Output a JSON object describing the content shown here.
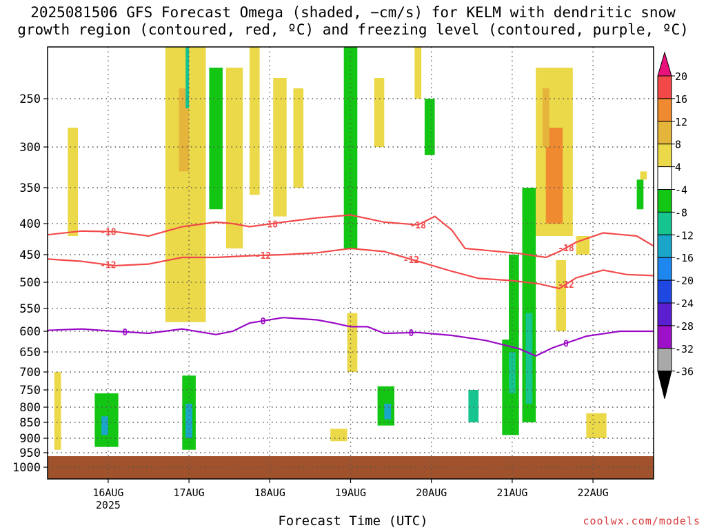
{
  "title_line1": "2025081506 GFS Forecast Omega (shaded, −cm/s) for KELM with dendritic snow",
  "title_line2": "growth region (contoured, red, ºC) and freezing level (contoured, purple, ºC)",
  "credit": "coolwx.com/models",
  "chart_data": {
    "type": "heatmap",
    "title": "2025081506 GFS Forecast Omega (shaded, −cm/s) for KELM with dendritic snow growth region (contoured, red, ºC) and freezing level (contoured, purple, ºC)",
    "xlabel": "Forecast Time (UTC)",
    "ylabel": "",
    "x_ticks": [
      {
        "label": "16AUG",
        "sub": "2025",
        "hour": 18
      },
      {
        "label": "17AUG",
        "sub": "",
        "hour": 42
      },
      {
        "label": "18AUG",
        "sub": "",
        "hour": 66
      },
      {
        "label": "19AUG",
        "sub": "",
        "hour": 90
      },
      {
        "label": "20AUG",
        "sub": "",
        "hour": 114
      },
      {
        "label": "21AUG",
        "sub": "",
        "hour": 138
      },
      {
        "label": "22AUG",
        "sub": "",
        "hour": 162
      }
    ],
    "xlim_hours": [
      0,
      180
    ],
    "y_axis": "pressure (hPa), reversed",
    "y_ticks": [
      250,
      300,
      350,
      400,
      450,
      500,
      550,
      600,
      650,
      700,
      750,
      800,
      850,
      900,
      950,
      1000
    ],
    "ylim": [
      1020,
      200
    ],
    "grid": true,
    "colorbar": {
      "labels": [
        "20",
        "16",
        "12",
        "8",
        "4",
        "-4",
        "-8",
        "-12",
        "-16",
        "-20",
        "-24",
        "-28",
        "-32",
        "-36"
      ],
      "colors": [
        "#e8127a",
        "#f34848",
        "#f08a30",
        "#e5b53b",
        "#ebd94a",
        "#ffffff",
        "#13c613",
        "#16c48f",
        "#1aa6c8",
        "#1e86ef",
        "#1f47e2",
        "#5b1ed0",
        "#9c11c8",
        "#a9a9a9",
        "#000000"
      ]
    },
    "omega_areas": [
      {
        "value": 4,
        "poly": [
          [
            2,
            700
          ],
          [
            4,
            700
          ],
          [
            4,
            940
          ],
          [
            2,
            940
          ]
        ]
      },
      {
        "value": 4,
        "poly": [
          [
            6,
            280
          ],
          [
            9,
            280
          ],
          [
            9,
            420
          ],
          [
            6,
            420
          ]
        ]
      },
      {
        "value": -8,
        "poly": [
          [
            15,
            800
          ],
          [
            20,
            800
          ],
          [
            20,
            920
          ],
          [
            15,
            920
          ]
        ]
      },
      {
        "value": -4,
        "poly": [
          [
            14,
            760
          ],
          [
            21,
            760
          ],
          [
            21,
            930
          ],
          [
            14,
            930
          ]
        ]
      },
      {
        "value": -12,
        "poly": [
          [
            16,
            830
          ],
          [
            18,
            830
          ],
          [
            18,
            890
          ],
          [
            16,
            890
          ]
        ]
      },
      {
        "value": 4,
        "poly": [
          [
            35,
            200
          ],
          [
            47,
            200
          ],
          [
            47,
            580
          ],
          [
            35,
            580
          ]
        ]
      },
      {
        "value": 8,
        "poly": [
          [
            39,
            240
          ],
          [
            42,
            240
          ],
          [
            42,
            330
          ],
          [
            39,
            330
          ]
        ]
      },
      {
        "value": -4,
        "poly": [
          [
            40,
            710
          ],
          [
            44,
            710
          ],
          [
            44,
            940
          ],
          [
            40,
            940
          ]
        ]
      },
      {
        "value": -12,
        "poly": [
          [
            41,
            790
          ],
          [
            43,
            790
          ],
          [
            43,
            900
          ],
          [
            41,
            900
          ]
        ]
      },
      {
        "value": -8,
        "poly": [
          [
            41,
            200
          ],
          [
            42,
            200
          ],
          [
            42,
            260
          ],
          [
            41,
            260
          ]
        ]
      },
      {
        "value": -4,
        "poly": [
          [
            48,
            220
          ],
          [
            52,
            220
          ],
          [
            52,
            380
          ],
          [
            48,
            380
          ]
        ]
      },
      {
        "value": 4,
        "poly": [
          [
            53,
            220
          ],
          [
            58,
            220
          ],
          [
            58,
            440
          ],
          [
            53,
            440
          ]
        ]
      },
      {
        "value": 4,
        "poly": [
          [
            60,
            200
          ],
          [
            63,
            200
          ],
          [
            63,
            360
          ],
          [
            60,
            360
          ]
        ]
      },
      {
        "value": 4,
        "poly": [
          [
            67,
            230
          ],
          [
            71,
            230
          ],
          [
            71,
            390
          ],
          [
            67,
            390
          ]
        ]
      },
      {
        "value": 4,
        "poly": [
          [
            73,
            240
          ],
          [
            76,
            240
          ],
          [
            76,
            350
          ],
          [
            73,
            350
          ]
        ]
      },
      {
        "value": -4,
        "poly": [
          [
            88,
            200
          ],
          [
            92,
            200
          ],
          [
            92,
            440
          ],
          [
            88,
            440
          ]
        ]
      },
      {
        "value": -4,
        "poly": [
          [
            98,
            740
          ],
          [
            103,
            740
          ],
          [
            103,
            860
          ],
          [
            98,
            860
          ]
        ]
      },
      {
        "value": -12,
        "poly": [
          [
            100,
            790
          ],
          [
            102,
            790
          ],
          [
            102,
            840
          ],
          [
            100,
            840
          ]
        ]
      },
      {
        "value": 4,
        "poly": [
          [
            89,
            560
          ],
          [
            92,
            560
          ],
          [
            92,
            700
          ],
          [
            89,
            700
          ]
        ]
      },
      {
        "value": 4,
        "poly": [
          [
            84,
            870
          ],
          [
            89,
            870
          ],
          [
            89,
            910
          ],
          [
            84,
            910
          ]
        ]
      },
      {
        "value": 4,
        "poly": [
          [
            97,
            230
          ],
          [
            100,
            230
          ],
          [
            100,
            300
          ],
          [
            97,
            300
          ]
        ]
      },
      {
        "value": 4,
        "poly": [
          [
            109,
            200
          ],
          [
            111,
            200
          ],
          [
            111,
            250
          ],
          [
            109,
            250
          ]
        ]
      },
      {
        "value": -4,
        "poly": [
          [
            112,
            250
          ],
          [
            115,
            250
          ],
          [
            115,
            310
          ],
          [
            112,
            310
          ]
        ]
      },
      {
        "value": -4,
        "poly": [
          [
            135,
            620
          ],
          [
            140,
            620
          ],
          [
            140,
            890
          ],
          [
            135,
            890
          ]
        ]
      },
      {
        "value": -4,
        "poly": [
          [
            137,
            450
          ],
          [
            140,
            450
          ],
          [
            140,
            620
          ],
          [
            137,
            620
          ]
        ]
      },
      {
        "value": -8,
        "poly": [
          [
            137,
            650
          ],
          [
            139,
            650
          ],
          [
            139,
            760
          ],
          [
            137,
            760
          ]
        ]
      },
      {
        "value": -4,
        "poly": [
          [
            141,
            350
          ],
          [
            145,
            350
          ],
          [
            145,
            850
          ],
          [
            141,
            850
          ]
        ]
      },
      {
        "value": -8,
        "poly": [
          [
            142,
            560
          ],
          [
            144,
            560
          ],
          [
            144,
            790
          ],
          [
            142,
            790
          ]
        ]
      },
      {
        "value": 4,
        "poly": [
          [
            145,
            220
          ],
          [
            156,
            220
          ],
          [
            156,
            420
          ],
          [
            145,
            420
          ]
        ]
      },
      {
        "value": 12,
        "poly": [
          [
            148,
            280
          ],
          [
            153,
            280
          ],
          [
            153,
            400
          ],
          [
            148,
            400
          ]
        ]
      },
      {
        "value": 8,
        "poly": [
          [
            147,
            240
          ],
          [
            149,
            240
          ],
          [
            149,
            300
          ],
          [
            147,
            300
          ]
        ]
      },
      {
        "value": 4,
        "poly": [
          [
            151,
            460
          ],
          [
            154,
            460
          ],
          [
            154,
            600
          ],
          [
            151,
            600
          ]
        ]
      },
      {
        "value": 4,
        "poly": [
          [
            157,
            420
          ],
          [
            161,
            420
          ],
          [
            161,
            450
          ],
          [
            157,
            450
          ]
        ]
      },
      {
        "value": 4,
        "poly": [
          [
            160,
            820
          ],
          [
            166,
            820
          ],
          [
            166,
            900
          ],
          [
            160,
            900
          ]
        ]
      },
      {
        "value": -8,
        "poly": [
          [
            125,
            750
          ],
          [
            128,
            750
          ],
          [
            128,
            850
          ],
          [
            125,
            850
          ]
        ]
      },
      {
        "value": -4,
        "poly": [
          [
            175,
            340
          ],
          [
            177,
            340
          ],
          [
            177,
            380
          ],
          [
            175,
            380
          ]
        ]
      },
      {
        "value": 4,
        "poly": [
          [
            176,
            330
          ],
          [
            178,
            330
          ],
          [
            178,
            340
          ],
          [
            176,
            340
          ]
        ]
      }
    ],
    "contours": [
      {
        "name": "-18",
        "color": "#f24a4a",
        "labels_at_hours": [
          18,
          66,
          110,
          154
        ],
        "points": [
          [
            0,
            418
          ],
          [
            10,
            412
          ],
          [
            20,
            413
          ],
          [
            30,
            420
          ],
          [
            40,
            405
          ],
          [
            50,
            398
          ],
          [
            55,
            400
          ],
          [
            60,
            405
          ],
          [
            70,
            398
          ],
          [
            80,
            392
          ],
          [
            90,
            388
          ],
          [
            100,
            398
          ],
          [
            110,
            402
          ],
          [
            115,
            390
          ],
          [
            120,
            410
          ],
          [
            124,
            440
          ],
          [
            140,
            448
          ],
          [
            148,
            455
          ],
          [
            152,
            445
          ],
          [
            157,
            430
          ],
          [
            165,
            415
          ],
          [
            175,
            420
          ],
          [
            180,
            436
          ]
        ]
      },
      {
        "name": "-12",
        "color": "#f24a4a",
        "labels_at_hours": [
          18,
          64,
          108,
          154
        ],
        "points": [
          [
            0,
            458
          ],
          [
            10,
            462
          ],
          [
            20,
            470
          ],
          [
            30,
            467
          ],
          [
            40,
            455
          ],
          [
            50,
            455
          ],
          [
            60,
            452
          ],
          [
            70,
            450
          ],
          [
            80,
            447
          ],
          [
            90,
            440
          ],
          [
            100,
            445
          ],
          [
            110,
            462
          ],
          [
            120,
            480
          ],
          [
            128,
            493
          ],
          [
            138,
            497
          ],
          [
            146,
            503
          ],
          [
            152,
            512
          ],
          [
            157,
            492
          ],
          [
            165,
            478
          ],
          [
            172,
            486
          ],
          [
            180,
            488
          ]
        ]
      },
      {
        "name": "0",
        "color": "#9a0ac6",
        "labels_at_hours": [
          23,
          64,
          108,
          154
        ],
        "points": [
          [
            0,
            598
          ],
          [
            10,
            595
          ],
          [
            20,
            600
          ],
          [
            30,
            605
          ],
          [
            40,
            595
          ],
          [
            50,
            608
          ],
          [
            55,
            600
          ],
          [
            60,
            582
          ],
          [
            70,
            570
          ],
          [
            80,
            575
          ],
          [
            85,
            582
          ],
          [
            90,
            590
          ],
          [
            95,
            590
          ],
          [
            100,
            605
          ],
          [
            110,
            603
          ],
          [
            120,
            610
          ],
          [
            130,
            622
          ],
          [
            140,
            642
          ],
          [
            145,
            660
          ],
          [
            150,
            640
          ],
          [
            160,
            612
          ],
          [
            170,
            600
          ],
          [
            180,
            600
          ]
        ]
      }
    ]
  }
}
